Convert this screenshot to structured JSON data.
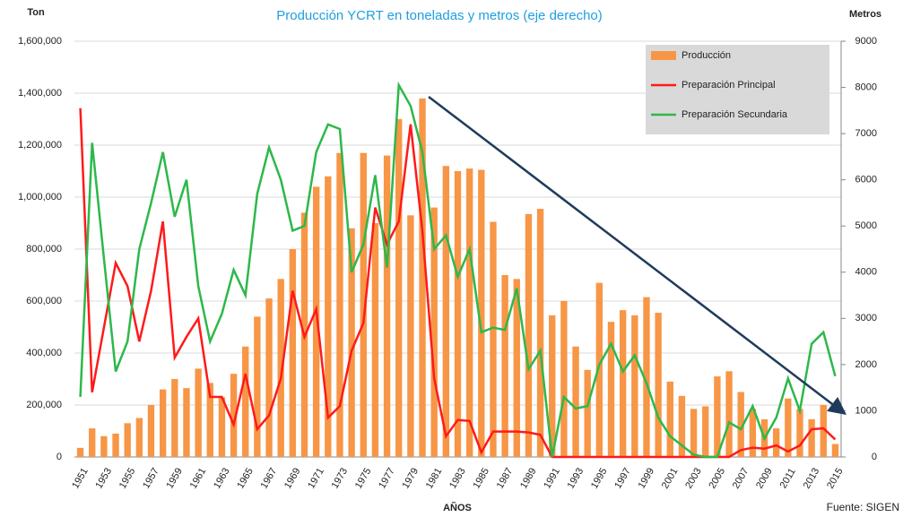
{
  "chart_data": {
    "type": "bar_line",
    "title": "Producción YCRT  en toneladas y metros (eje derecho)",
    "y_label": "Ton",
    "y2_label": "Metros",
    "x_label": "AÑOS",
    "source": "Fuente: SIGEN",
    "categories": [
      "1951",
      null,
      "1953",
      null,
      "1955",
      null,
      "1957",
      null,
      "1959",
      null,
      "1961",
      null,
      "1963",
      null,
      "1965",
      null,
      "1967",
      null,
      "1969",
      null,
      "1971",
      null,
      "1973",
      null,
      "1975",
      null,
      "1977",
      null,
      "1979",
      null,
      "1981",
      null,
      "1983",
      null,
      "1985",
      null,
      "1987",
      null,
      "1989",
      null,
      "1991",
      null,
      "1993",
      null,
      "1995",
      null,
      "1997",
      null,
      "1999",
      null,
      "2001",
      null,
      "2003",
      null,
      "2005",
      null,
      "2007",
      null,
      "2009",
      null,
      "2011",
      null,
      "2013",
      null,
      "2015"
    ],
    "series": [
      {
        "name": "Producción",
        "kind": "bar",
        "color": "#f79646",
        "values": [
          35000,
          110000,
          80000,
          90000,
          130000,
          150000,
          200000,
          260000,
          300000,
          265000,
          340000,
          285000,
          230000,
          320000,
          425000,
          540000,
          610000,
          685000,
          800000,
          940000,
          1040000,
          1080000,
          1170000,
          880000,
          1170000,
          900000,
          1160000,
          1300000,
          930000,
          1380000,
          960000,
          1120000,
          1100000,
          1110000,
          1105000,
          905000,
          700000,
          685000,
          935000,
          955000,
          545000,
          600000,
          425000,
          335000,
          670000,
          520000,
          565000,
          545000,
          615000,
          555000,
          290000,
          235000,
          185000,
          195000,
          310000,
          330000,
          250000,
          185000,
          145000,
          110000,
          225000,
          185000,
          145000,
          200000,
          50000
        ]
      },
      {
        "name": "Preparación Principal",
        "kind": "line",
        "axis": "y2",
        "color": "#ff1a1a",
        "values": [
          7550,
          1400,
          2800,
          4200,
          3700,
          2500,
          3600,
          5100,
          2150,
          2600,
          3000,
          1300,
          1300,
          700,
          1800,
          600,
          900,
          1700,
          3600,
          2600,
          3200,
          850,
          1100,
          2300,
          2900,
          5400,
          4600,
          5100,
          7200,
          4900,
          1700,
          450,
          800,
          780,
          100,
          550,
          550,
          550,
          530,
          480,
          0,
          0,
          0,
          0,
          0,
          0,
          0,
          0,
          0,
          0,
          0,
          0,
          0,
          0,
          0,
          0,
          150,
          200,
          180,
          250,
          120,
          250,
          600,
          620,
          380
        ]
      },
      {
        "name": "Preparación Secundaria",
        "kind": "line",
        "axis": "y2",
        "color": "#2db84a",
        "values": [
          1300,
          6800,
          4300,
          1850,
          2500,
          4500,
          5500,
          6600,
          5200,
          6000,
          3700,
          2500,
          3100,
          4050,
          3500,
          5700,
          6700,
          6000,
          4900,
          5000,
          6600,
          7200,
          7100,
          4000,
          4600,
          6100,
          4100,
          8050,
          7600,
          6600,
          4500,
          4800,
          3900,
          4500,
          2700,
          2800,
          2750,
          3650,
          1900,
          2300,
          0,
          1300,
          1050,
          1100,
          2000,
          2450,
          1850,
          2200,
          1600,
          850,
          450,
          250,
          50,
          0,
          0,
          750,
          600,
          1100,
          400,
          850,
          1700,
          1000,
          2450,
          2700,
          1750
        ]
      }
    ],
    "ylim": [
      0,
      1600000
    ],
    "yticks": [
      0,
      {
        "value": 200000,
        "label": "200,000"
      },
      {
        "value": 400000,
        "label": "400,000"
      },
      {
        "value": 600000,
        "label": "600,000"
      },
      {
        "value": 800000,
        "label": "800,000"
      },
      {
        "value": 1000000,
        "label": "1,000,000"
      },
      {
        "value": 1200000,
        "label": "1,200,000"
      },
      {
        "value": 1400000,
        "label": "1,400,000"
      },
      {
        "value": 1600000,
        "label": "1,600,000"
      }
    ],
    "y2lim": [
      0,
      9000
    ],
    "y2ticks": [
      0,
      1000,
      2000,
      3000,
      4000,
      5000,
      6000,
      7000,
      8000,
      9000
    ],
    "grid": true,
    "legend": "top-right"
  }
}
